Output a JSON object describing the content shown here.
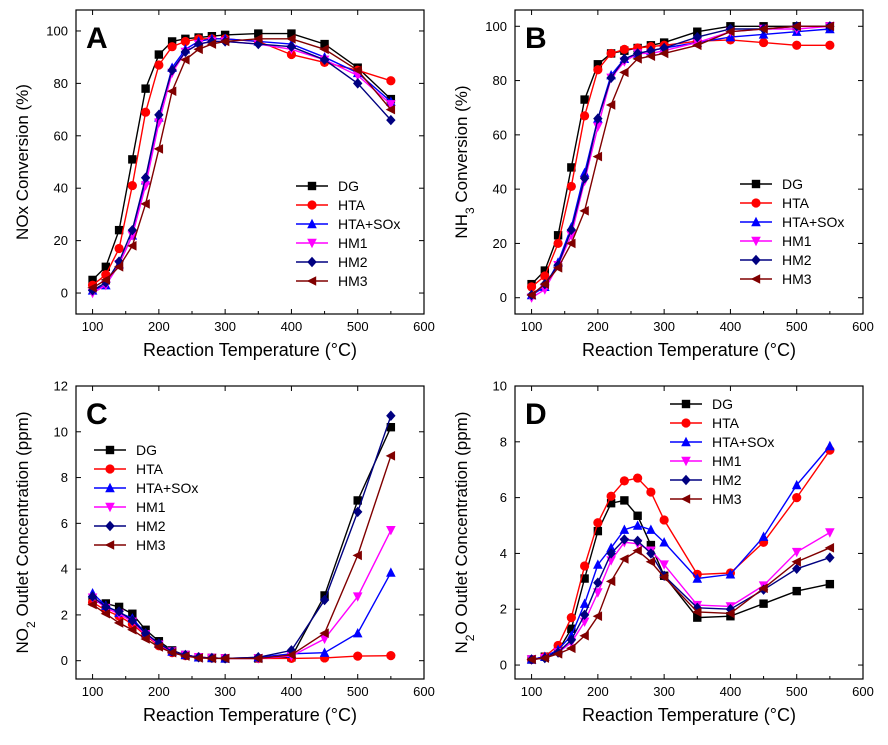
{
  "colors": {
    "DG": "#000000",
    "HTA": "#ff0000",
    "HTA+SOx": "#0000ff",
    "HM1": "#ff00ff",
    "HM2": "#000080",
    "HM3": "#800000"
  },
  "markers": {
    "DG": "square",
    "HTA": "circle",
    "HTA+SOx": "triangle-up",
    "HM1": "triangle-down",
    "HM2": "diamond",
    "HM3": "triangle-left"
  },
  "chart_data": [
    {
      "type": "line",
      "panel_label": "A",
      "xlabel": "Reaction Temperature (°C)",
      "ylabel": "NOx Conversion (%)",
      "xlim": [
        75,
        600
      ],
      "ylim": [
        -8,
        108
      ],
      "xticks": [
        100,
        200,
        300,
        400,
        500,
        600
      ],
      "yticks": [
        0,
        20,
        40,
        60,
        80,
        100
      ],
      "legend_position": "lower-right",
      "grid": false,
      "x": [
        100,
        120,
        140,
        160,
        180,
        200,
        220,
        240,
        260,
        280,
        300,
        350,
        400,
        450,
        500,
        550
      ],
      "series": [
        {
          "name": "DG",
          "values": [
            5,
            10,
            24,
            51,
            78,
            91,
            96,
            97,
            97.5,
            98,
            98.5,
            99,
            99,
            95,
            86,
            74
          ]
        },
        {
          "name": "HTA",
          "values": [
            3,
            7,
            17,
            41,
            69,
            87,
            94,
            96,
            97,
            97,
            97,
            96,
            91,
            88,
            85,
            81
          ]
        },
        {
          "name": "HTA+SOx",
          "values": [
            1,
            3,
            11,
            22,
            43,
            67,
            86,
            93,
            96,
            97,
            97,
            96,
            95,
            90,
            84,
            73
          ]
        },
        {
          "name": "HM1",
          "values": [
            0,
            3,
            11,
            22,
            41,
            65,
            84,
            92,
            95,
            96,
            96,
            95,
            93,
            89,
            83,
            72
          ]
        },
        {
          "name": "HM2",
          "values": [
            1,
            4,
            12,
            24,
            44,
            68,
            85,
            92,
            95,
            96,
            96,
            95,
            94,
            89,
            80,
            66
          ]
        },
        {
          "name": "HM3",
          "values": [
            2,
            5,
            10,
            18,
            34,
            55,
            77,
            89,
            93,
            95,
            96,
            97,
            97,
            93,
            85,
            70
          ]
        }
      ]
    },
    {
      "type": "line",
      "panel_label": "B",
      "xlabel": "Reaction Temperature (°C)",
      "ylabel": "NH3 Conversion (%)",
      "ylabel_main": "NH",
      "ylabel_sub": "3",
      "ylabel_tail": " Conversion (%)",
      "xlim": [
        75,
        600
      ],
      "ylim": [
        -6,
        106
      ],
      "xticks": [
        100,
        200,
        300,
        400,
        500,
        600
      ],
      "yticks": [
        0,
        20,
        40,
        60,
        80,
        100
      ],
      "legend_position": "lower-right",
      "grid": false,
      "x": [
        100,
        120,
        140,
        160,
        180,
        200,
        220,
        240,
        260,
        280,
        300,
        350,
        400,
        450,
        500,
        550
      ],
      "series": [
        {
          "name": "DG",
          "values": [
            5,
            10,
            23,
            48,
            73,
            86,
            90,
            91,
            92,
            93,
            94,
            98,
            100,
            100,
            100,
            100
          ]
        },
        {
          "name": "HTA",
          "values": [
            4,
            8,
            20,
            41,
            67,
            84,
            90,
            91.5,
            92,
            92.5,
            93,
            94.5,
            95,
            94,
            93,
            93
          ]
        },
        {
          "name": "HTA+SOx",
          "values": [
            1,
            4,
            13,
            26,
            46,
            66,
            82,
            88,
            90,
            91,
            92,
            94,
            96,
            97,
            98,
            99
          ]
        },
        {
          "name": "HM1",
          "values": [
            0,
            3,
            12,
            23,
            43,
            63,
            81,
            87,
            90,
            90,
            91,
            94,
            98,
            99,
            99,
            100
          ]
        },
        {
          "name": "HM2",
          "values": [
            1,
            5,
            12,
            25,
            44,
            66,
            81,
            88,
            90,
            91,
            92,
            96,
            99,
            99,
            100,
            100
          ]
        },
        {
          "name": "HM3",
          "values": [
            1,
            5,
            11,
            20,
            32,
            52,
            71,
            83,
            88,
            89,
            90,
            93,
            98,
            99,
            100,
            100
          ]
        }
      ]
    },
    {
      "type": "line",
      "panel_label": "C",
      "xlabel": "Reaction Temperature (°C)",
      "ylabel": "NO2 Outlet Concentration (ppm)",
      "ylabel_main": "NO",
      "ylabel_sub": "2",
      "ylabel_tail": " Outlet Concentration (ppm)",
      "xlim": [
        75,
        600
      ],
      "ylim": [
        -0.8,
        12
      ],
      "xticks": [
        100,
        200,
        300,
        400,
        500,
        600
      ],
      "yticks": [
        0,
        2,
        4,
        6,
        8,
        10,
        12
      ],
      "legend_position": "middle-left",
      "grid": false,
      "x": [
        100,
        120,
        140,
        160,
        180,
        200,
        220,
        240,
        260,
        280,
        300,
        350,
        400,
        450,
        500,
        550
      ],
      "series": [
        {
          "name": "DG",
          "values": [
            2.6,
            2.5,
            2.35,
            2.05,
            1.35,
            0.85,
            0.45,
            0.25,
            0.15,
            0.12,
            0.1,
            0.1,
            0.15,
            2.85,
            7.0,
            10.2
          ]
        },
        {
          "name": "HTA",
          "values": [
            2.55,
            2.2,
            1.95,
            1.6,
            1.1,
            0.65,
            0.35,
            0.22,
            0.15,
            0.12,
            0.1,
            0.1,
            0.1,
            0.12,
            0.2,
            0.22
          ]
        },
        {
          "name": "HTA+SOx",
          "values": [
            2.95,
            2.4,
            2.1,
            1.85,
            1.2,
            0.75,
            0.4,
            0.25,
            0.15,
            0.12,
            0.1,
            0.15,
            0.3,
            0.35,
            1.2,
            3.85
          ]
        },
        {
          "name": "HM1",
          "values": [
            2.75,
            2.3,
            2.05,
            1.7,
            1.15,
            0.7,
            0.4,
            0.25,
            0.15,
            0.12,
            0.1,
            0.1,
            0.2,
            0.95,
            2.8,
            5.7
          ]
        },
        {
          "name": "HM2",
          "values": [
            2.8,
            2.35,
            2.15,
            1.75,
            1.2,
            0.75,
            0.4,
            0.25,
            0.15,
            0.12,
            0.1,
            0.15,
            0.45,
            2.65,
            6.5,
            10.7
          ]
        },
        {
          "name": "HM3",
          "values": [
            2.45,
            2.05,
            1.65,
            1.35,
            0.95,
            0.6,
            0.35,
            0.2,
            0.12,
            0.1,
            0.1,
            0.1,
            0.25,
            1.2,
            4.6,
            8.95
          ]
        }
      ]
    },
    {
      "type": "line",
      "panel_label": "D",
      "xlabel": "Reaction Temperature (°C)",
      "ylabel": "N2O Outlet Concentration (ppm)",
      "ylabel_main": "N",
      "ylabel_sub": "2",
      "ylabel_tail": "O Outlet Concentration (ppm)",
      "xlim": [
        75,
        600
      ],
      "ylim": [
        -0.5,
        10
      ],
      "xticks": [
        100,
        200,
        300,
        400,
        500,
        600
      ],
      "yticks": [
        0,
        2,
        4,
        6,
        8,
        10
      ],
      "legend_position": "top-center",
      "grid": false,
      "x": [
        100,
        120,
        140,
        160,
        180,
        200,
        220,
        240,
        260,
        280,
        300,
        350,
        400,
        450,
        500,
        550
      ],
      "series": [
        {
          "name": "DG",
          "values": [
            0.2,
            0.3,
            0.5,
            1.3,
            3.1,
            4.8,
            5.8,
            5.9,
            5.35,
            4.3,
            3.2,
            1.7,
            1.75,
            2.2,
            2.65,
            2.9
          ]
        },
        {
          "name": "HTA",
          "values": [
            0.2,
            0.3,
            0.7,
            1.7,
            3.55,
            5.1,
            6.05,
            6.6,
            6.7,
            6.2,
            5.2,
            3.25,
            3.3,
            4.4,
            6.0,
            7.7
          ]
        },
        {
          "name": "HTA+SOx",
          "values": [
            0.2,
            0.3,
            0.55,
            1.05,
            2.2,
            3.6,
            4.2,
            4.85,
            5.0,
            4.85,
            4.4,
            3.1,
            3.25,
            4.6,
            6.45,
            7.85
          ]
        },
        {
          "name": "HM1",
          "values": [
            0.2,
            0.25,
            0.45,
            0.8,
            1.55,
            2.6,
            3.75,
            4.4,
            4.35,
            4.1,
            3.6,
            2.15,
            2.1,
            2.85,
            4.05,
            4.75
          ]
        },
        {
          "name": "HM2",
          "values": [
            0.2,
            0.25,
            0.45,
            0.9,
            1.8,
            2.95,
            4.0,
            4.5,
            4.45,
            4.0,
            3.2,
            2.05,
            2.0,
            2.7,
            3.45,
            3.85
          ]
        },
        {
          "name": "HM3",
          "values": [
            0.2,
            0.25,
            0.4,
            0.6,
            1.05,
            1.75,
            3.0,
            3.8,
            4.1,
            3.7,
            3.15,
            1.9,
            1.85,
            2.75,
            3.7,
            4.2
          ]
        }
      ]
    }
  ]
}
